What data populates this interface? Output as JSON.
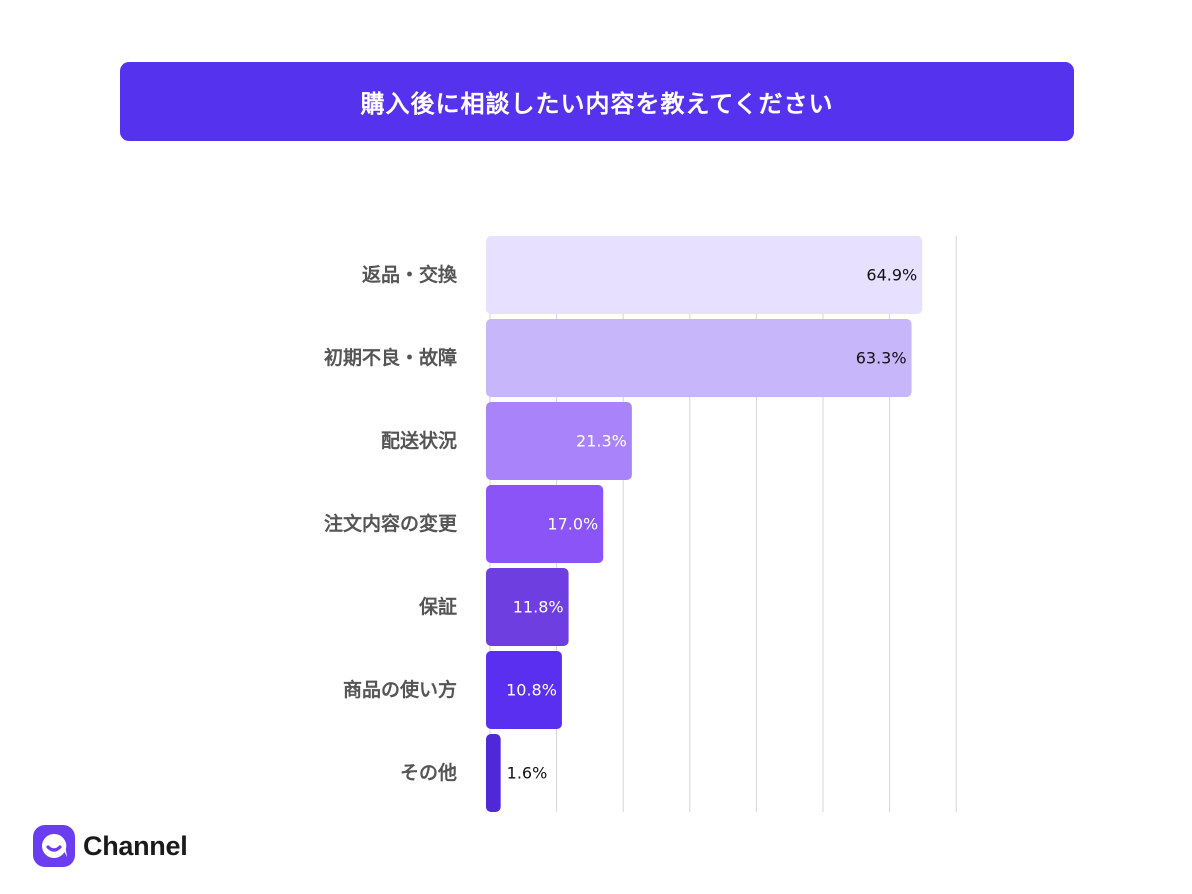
{
  "header": {
    "title": "購入後に相談したい内容を教えてください"
  },
  "brand": {
    "name": "Channel",
    "icon": "channel-logo-icon",
    "color": "#6a3df0"
  },
  "chart_data": {
    "type": "bar",
    "orientation": "horizontal",
    "categories": [
      "返品・交換",
      "初期不良・故障",
      "配送状況",
      "注文内容の変更",
      "保証",
      "商品の使い方",
      "その他"
    ],
    "values": [
      64.9,
      63.3,
      21.3,
      17.0,
      11.8,
      10.8,
      1.6
    ],
    "value_labels": [
      "64.9%",
      "63.3%",
      "21.3%",
      "17.0%",
      "11.8%",
      "10.8%",
      "1.6%"
    ],
    "bar_colors": [
      "#e8e0ff",
      "#c8b6fb",
      "#a983fa",
      "#8a54f6",
      "#6e3ee0",
      "#5a2ff0",
      "#4f28d8"
    ],
    "label_colors": [
      "#111111",
      "#111111",
      "#ffffff",
      "#ffffff",
      "#ffffff",
      "#ffffff",
      "#111111"
    ],
    "xlim": [
      0,
      70
    ],
    "grid": true,
    "grid_step": 10,
    "grid_color": "#d6d6d6",
    "legend": "none"
  }
}
